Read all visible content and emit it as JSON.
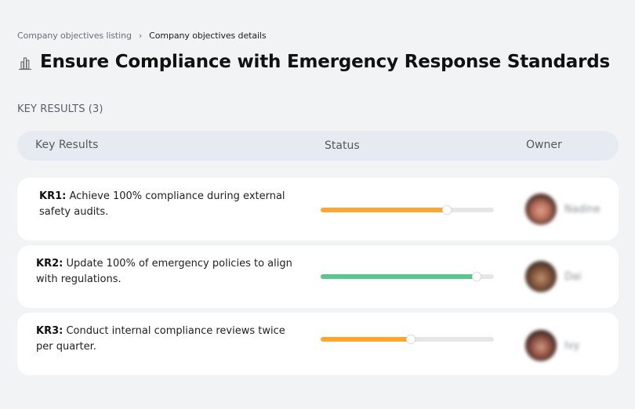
{
  "breadcrumb": {
    "items": [
      {
        "label": "Company objectives listing"
      },
      {
        "label": "Company objectives details"
      }
    ],
    "separator": "›"
  },
  "header": {
    "icon": "building-chart-icon",
    "title": "Ensure Compliance with Emergency Response Standards"
  },
  "key_results_section": {
    "label": "KEY RESULTS (3)",
    "columns": [
      "Key Results",
      "Status",
      "Owner"
    ]
  },
  "key_results": [
    {
      "id": "KR1:",
      "text": "Achieve 100% compliance during external safety audits.",
      "progress": 73,
      "progress_color": "#ffa630",
      "owner": {
        "name": "Nadine",
        "avatar_colors": [
          "#3a2520",
          "#b8705a",
          "#e0a090"
        ]
      }
    },
    {
      "id": "KR2:",
      "text": "Update 100% of emergency policies to align with regulations.",
      "progress": 90,
      "progress_color": "#58c68e",
      "owner": {
        "name": "Dai",
        "avatar_colors": [
          "#3a2a22",
          "#8a5a40",
          "#c09070"
        ]
      }
    },
    {
      "id": "KR3:",
      "text": "Conduct internal compliance reviews twice per quarter.",
      "progress": 52,
      "progress_color": "#ffa630",
      "owner": {
        "name": "Ivy",
        "avatar_colors": [
          "#2e2220",
          "#9a5848",
          "#d09a88"
        ]
      }
    }
  ],
  "colors": {
    "background": "#f2f3f5",
    "header_bar": "#e6ebf2",
    "card": "#ffffff",
    "progress_track": "#e6e6e6"
  }
}
